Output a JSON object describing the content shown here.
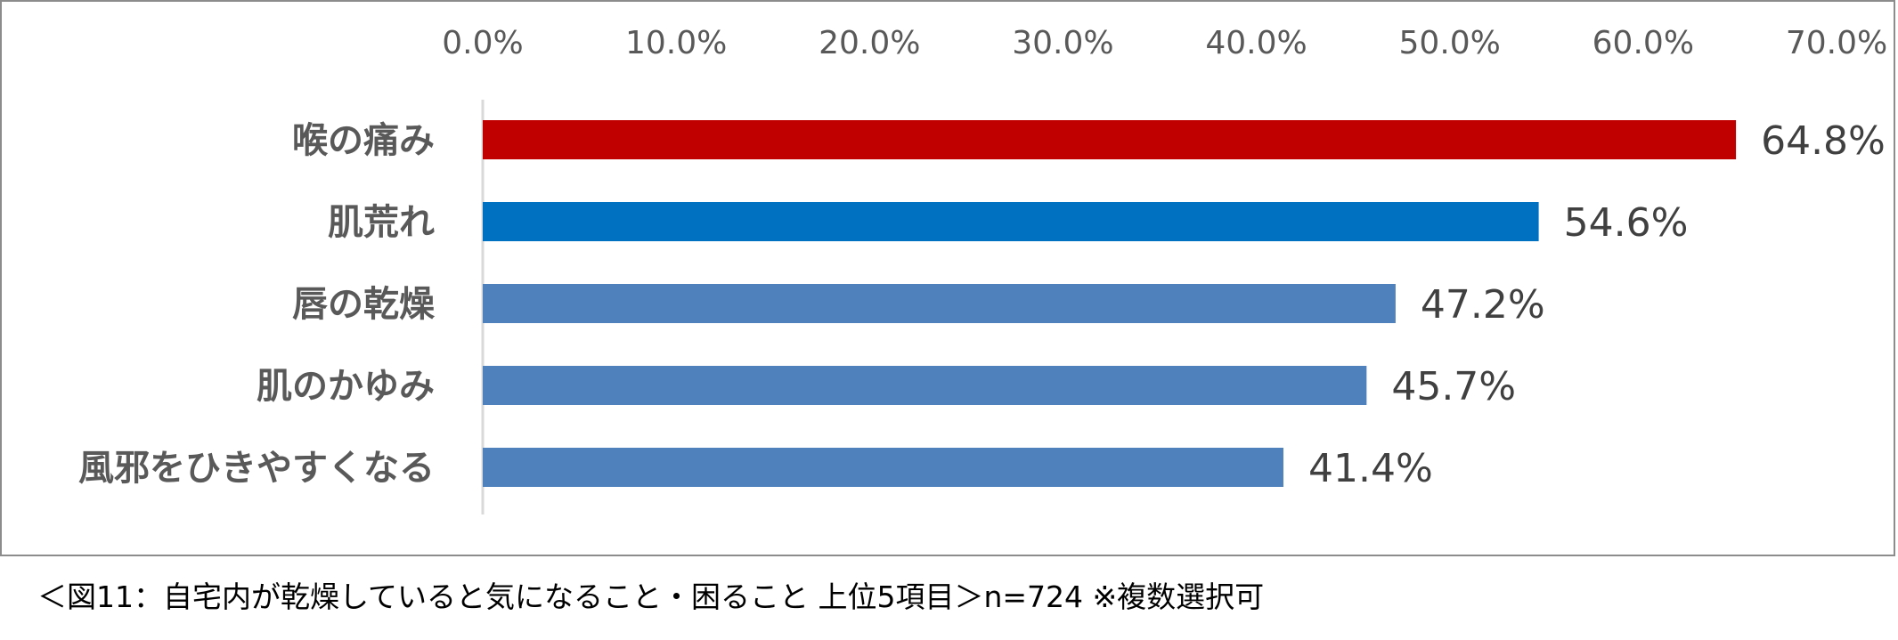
{
  "chart_data": {
    "type": "bar",
    "orientation": "horizontal",
    "categories": [
      "喉の痛み",
      "肌荒れ",
      "唇の乾燥",
      "肌のかゆみ",
      "風邪をひきやすくなる"
    ],
    "values": [
      64.8,
      54.6,
      47.2,
      45.7,
      41.4
    ],
    "data_labels": [
      "64.8%",
      "54.6%",
      "47.2%",
      "45.7%",
      "41.4%"
    ],
    "bar_colors": [
      "#c00000",
      "#0070c0",
      "#4f81bd",
      "#4f81bd",
      "#4f81bd"
    ],
    "xlim": [
      0,
      70
    ],
    "xticks": [
      0,
      10,
      20,
      30,
      40,
      50,
      60,
      70
    ],
    "xtick_labels": [
      "0.0%",
      "10.0%",
      "20.0%",
      "30.0%",
      "40.0%",
      "50.0%",
      "60.0%",
      "70.0%"
    ],
    "axis_position": "top",
    "grid": false
  },
  "caption": "＜図11：自宅内が乾燥していると気になること・困ること 上位5項目＞n=724 ※複数選択可"
}
